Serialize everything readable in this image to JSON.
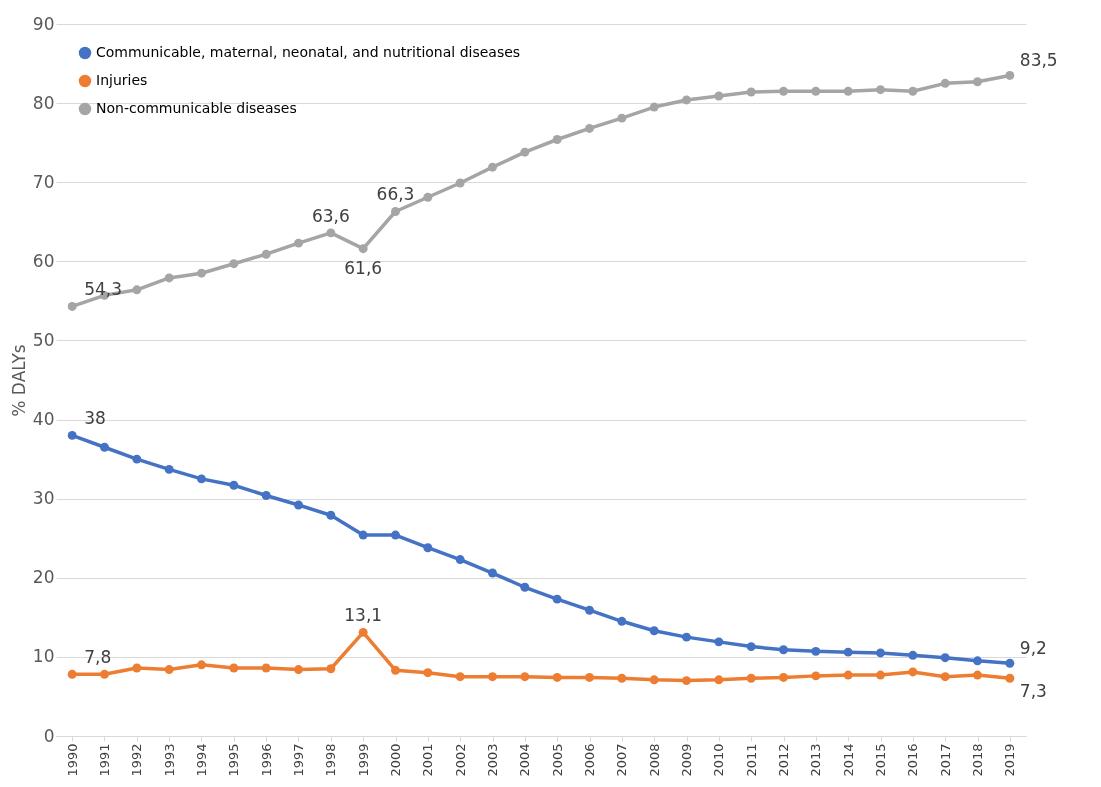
{
  "chart_data": {
    "type": "line",
    "ylabel": "% DALYs",
    "categories": [
      "1990",
      "1991",
      "1992",
      "1993",
      "1994",
      "1995",
      "1996",
      "1997",
      "1998",
      "1999",
      "2000",
      "2001",
      "2002",
      "2003",
      "2004",
      "2005",
      "2006",
      "2007",
      "2008",
      "2009",
      "2010",
      "2011",
      "2012",
      "2013",
      "2014",
      "2015",
      "2016",
      "2017",
      "2018",
      "2019"
    ],
    "series": [
      {
        "name": "Communicable, maternal, neonatal, and nutritional diseases",
        "color": "#4472c4",
        "values": [
          38,
          36.5,
          35.0,
          33.7,
          32.5,
          31.7,
          30.4,
          29.2,
          27.9,
          25.4,
          25.4,
          23.8,
          22.3,
          20.6,
          18.8,
          17.3,
          15.9,
          14.5,
          13.3,
          12.5,
          11.9,
          11.3,
          10.9,
          10.7,
          10.6,
          10.5,
          10.2,
          9.9,
          9.5,
          9.2
        ],
        "value_labels": [
          "38",
          null,
          null,
          null,
          null,
          null,
          null,
          null,
          null,
          null,
          null,
          null,
          null,
          null,
          null,
          null,
          null,
          null,
          null,
          null,
          null,
          null,
          null,
          null,
          null,
          null,
          null,
          null,
          null,
          "9,2"
        ]
      },
      {
        "name": "Injuries",
        "color": "#ed7d31",
        "values": [
          7.8,
          7.8,
          8.6,
          8.4,
          9.0,
          8.6,
          8.6,
          8.4,
          8.5,
          13.1,
          8.3,
          8.0,
          7.5,
          7.5,
          7.5,
          7.4,
          7.4,
          7.3,
          7.1,
          7.0,
          7.1,
          7.3,
          7.4,
          7.6,
          7.7,
          7.7,
          8.1,
          7.5,
          7.7,
          7.3
        ],
        "value_labels": [
          "7,8",
          null,
          null,
          null,
          null,
          null,
          null,
          null,
          null,
          "13,1",
          null,
          null,
          null,
          null,
          null,
          null,
          null,
          null,
          null,
          null,
          null,
          null,
          null,
          null,
          null,
          null,
          null,
          null,
          null,
          "7,3"
        ]
      },
      {
        "name": "Non-communicable diseases",
        "color": "#a5a5a5",
        "values": [
          54.3,
          55.7,
          56.4,
          57.9,
          58.5,
          59.7,
          60.9,
          62.3,
          63.6,
          61.6,
          66.3,
          68.1,
          69.9,
          71.9,
          73.8,
          75.4,
          76.8,
          78.1,
          79.5,
          80.4,
          80.9,
          81.4,
          81.5,
          81.5,
          81.5,
          81.7,
          81.5,
          82.5,
          82.7,
          83.5
        ],
        "value_labels": [
          "54,3",
          null,
          null,
          null,
          null,
          null,
          null,
          null,
          "63,6",
          "61,6",
          "66,3",
          null,
          null,
          null,
          null,
          null,
          null,
          null,
          null,
          null,
          null,
          null,
          null,
          null,
          null,
          null,
          null,
          null,
          null,
          "83,5"
        ]
      }
    ],
    "ylim": [
      0,
      90
    ],
    "yticks": [
      0,
      10,
      20,
      30,
      40,
      50,
      60,
      70,
      80,
      90
    ],
    "grid": "y",
    "legend": "top left",
    "marker": "circle",
    "line_style": "solid"
  }
}
